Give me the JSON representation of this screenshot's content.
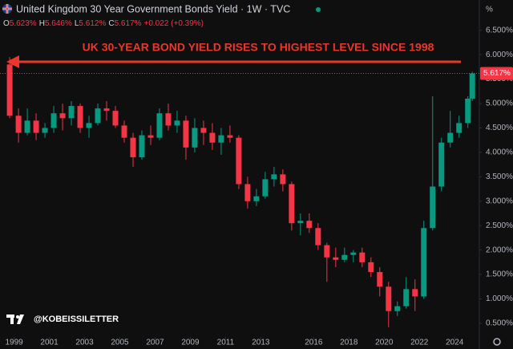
{
  "chart_data": {
    "type": "candlestick",
    "title": "United Kingdom 30 Year Government Bonds Yield · 1W · TVC",
    "ohlc_legend": [
      {
        "key": "O",
        "value": "5.623%"
      },
      {
        "key": "H",
        "value": "5.646%"
      },
      {
        "key": "L",
        "value": "5.612%"
      },
      {
        "key": "C",
        "value": "5.617%"
      }
    ],
    "change": "+0.022 (+0.39%)",
    "annotation": "UK 30-YEAR BOND YIELD RISES TO HIGHEST LEVEL SINCE 1998",
    "watermark": "@KOBEISSILETTER",
    "unit": "%",
    "last_price": {
      "value": 5.617,
      "label": "5.617%"
    },
    "up_color": "#089981",
    "down_color": "#f23645",
    "annotation_color": "#e8372c",
    "x": [
      1998.75,
      1999.25,
      1999.75,
      2000.25,
      2000.75,
      2001.25,
      2001.75,
      2002.25,
      2002.75,
      2003.25,
      2003.75,
      2004.25,
      2004.75,
      2005.25,
      2005.75,
      2006.25,
      2006.75,
      2007.25,
      2007.75,
      2008.25,
      2008.75,
      2009.25,
      2009.75,
      2010.25,
      2010.75,
      2011.25,
      2011.75,
      2012.25,
      2012.75,
      2013.25,
      2013.75,
      2014.25,
      2014.75,
      2015.25,
      2015.75,
      2016.25,
      2016.75,
      2017.25,
      2017.75,
      2018.25,
      2018.75,
      2019.25,
      2019.75,
      2020.25,
      2020.75,
      2021.25,
      2021.75,
      2022.25,
      2022.75,
      2023.25,
      2023.75,
      2024.25,
      2024.75,
      2025.0
    ],
    "open": [
      5.8,
      4.75,
      4.4,
      4.65,
      4.4,
      4.5,
      4.8,
      4.7,
      4.95,
      4.5,
      4.6,
      4.9,
      4.85,
      4.55,
      4.3,
      3.9,
      4.35,
      4.3,
      4.8,
      4.55,
      4.65,
      4.1,
      4.5,
      4.4,
      4.2,
      4.35,
      4.3,
      3.35,
      3.0,
      3.1,
      3.45,
      3.55,
      3.35,
      2.55,
      2.6,
      2.45,
      2.1,
      1.85,
      1.8,
      1.9,
      1.95,
      1.75,
      1.55,
      1.25,
      0.75,
      0.85,
      1.2,
      1.05,
      2.45,
      3.3,
      4.2,
      4.4,
      4.6,
      5.1
    ],
    "high": [
      5.95,
      4.9,
      4.9,
      4.8,
      4.6,
      4.95,
      5.0,
      5.05,
      5.0,
      4.75,
      5.0,
      5.05,
      4.95,
      4.65,
      4.4,
      4.45,
      4.55,
      4.9,
      5.0,
      4.85,
      4.75,
      4.7,
      4.65,
      4.6,
      4.5,
      4.55,
      4.35,
      3.5,
      3.25,
      3.6,
      3.7,
      3.65,
      3.4,
      2.75,
      2.75,
      2.55,
      2.15,
      2.05,
      2.05,
      2.0,
      2.05,
      1.85,
      1.65,
      1.35,
      0.95,
      1.45,
      1.4,
      2.6,
      5.15,
      4.3,
      4.85,
      4.75,
      5.15,
      5.65
    ],
    "low": [
      4.7,
      4.2,
      4.35,
      4.25,
      4.3,
      4.4,
      4.45,
      4.55,
      4.4,
      4.3,
      4.55,
      4.65,
      4.5,
      4.2,
      3.7,
      3.85,
      4.15,
      4.25,
      4.45,
      4.4,
      3.85,
      4.0,
      4.15,
      4.05,
      3.95,
      4.2,
      3.25,
      2.85,
      2.9,
      3.05,
      3.3,
      3.2,
      2.4,
      2.3,
      2.35,
      2.0,
      1.35,
      1.65,
      1.75,
      1.75,
      1.65,
      1.45,
      1.05,
      0.42,
      0.65,
      0.8,
      0.75,
      1.0,
      2.4,
      3.2,
      4.1,
      4.3,
      4.5,
      5.05
    ],
    "close": [
      4.75,
      4.4,
      4.65,
      4.4,
      4.5,
      4.8,
      4.7,
      4.95,
      4.5,
      4.6,
      4.9,
      4.85,
      4.55,
      4.3,
      3.9,
      4.35,
      4.3,
      4.8,
      4.55,
      4.65,
      4.1,
      4.5,
      4.4,
      4.2,
      4.35,
      4.3,
      3.35,
      3.0,
      3.1,
      3.45,
      3.55,
      3.35,
      2.55,
      2.6,
      2.45,
      2.1,
      1.85,
      1.8,
      1.9,
      1.95,
      1.75,
      1.55,
      1.25,
      0.75,
      0.85,
      1.2,
      1.05,
      2.45,
      3.3,
      4.2,
      4.4,
      4.6,
      5.1,
      5.617
    ],
    "xlim": [
      1998.2,
      2025.4
    ],
    "xticks": [
      1999,
      2001,
      2003,
      2005,
      2007,
      2009,
      2011,
      2013,
      2016,
      2018,
      2020,
      2022,
      2024
    ],
    "ylim": [
      0.22,
      7.12
    ],
    "yticks": [
      {
        "value": 0.5,
        "label": "0.500%"
      },
      {
        "value": 1.0,
        "label": "1.000%"
      },
      {
        "value": 1.5,
        "label": "1.500%"
      },
      {
        "value": 2.0,
        "label": "2.000%"
      },
      {
        "value": 2.5,
        "label": "2.500%"
      },
      {
        "value": 3.0,
        "label": "3.000%"
      },
      {
        "value": 3.5,
        "label": "3.500%"
      },
      {
        "value": 4.0,
        "label": "4.000%"
      },
      {
        "value": 4.5,
        "label": "4.500%"
      },
      {
        "value": 5.0,
        "label": "5.000%"
      },
      {
        "value": 5.5,
        "label": "5.500%"
      },
      {
        "value": 6.0,
        "label": "6.000%"
      },
      {
        "value": 6.5,
        "label": "6.500%"
      }
    ]
  }
}
